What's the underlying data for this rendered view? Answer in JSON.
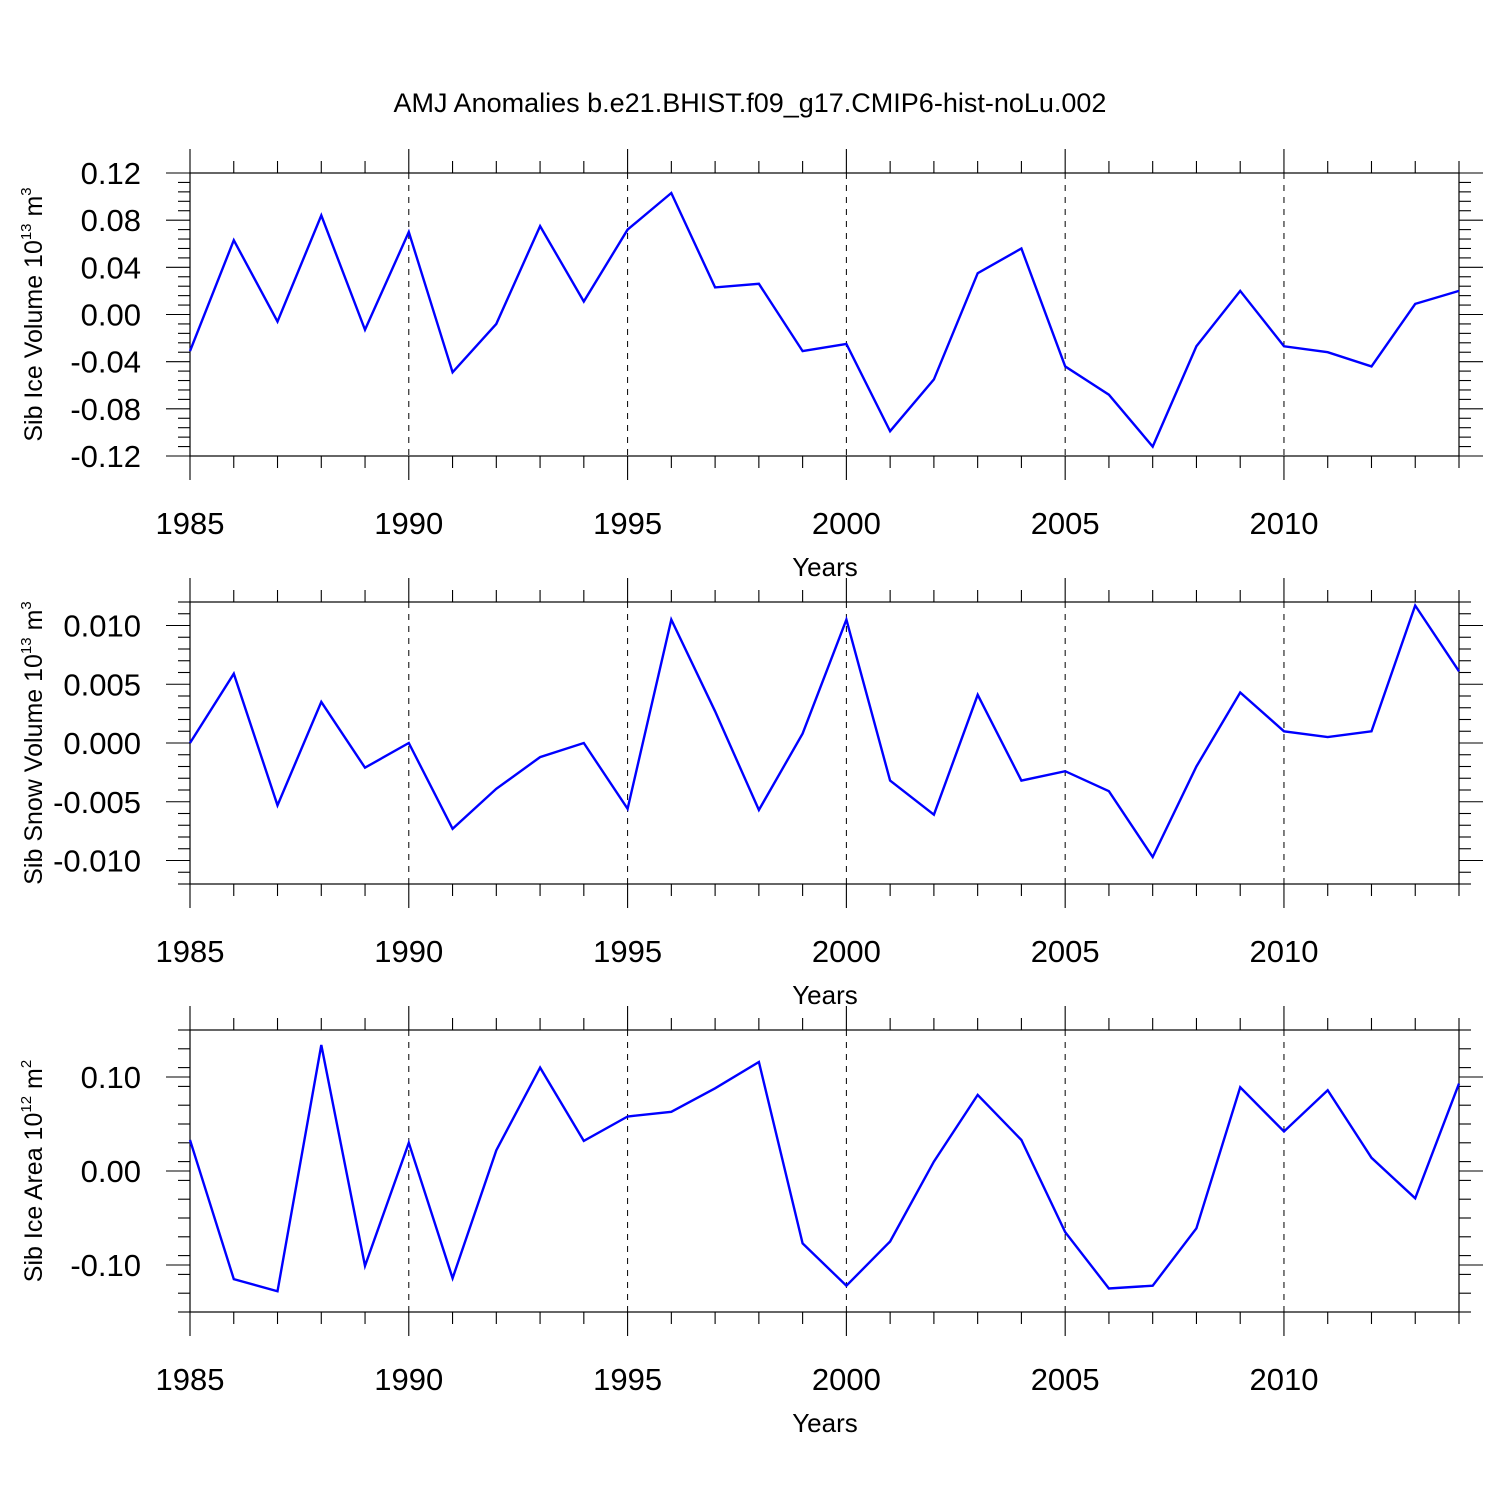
{
  "title": "AMJ Anomalies b.e21.BHIST.f09_g17.CMIP6-hist-noLu.002",
  "colors": {
    "series": "#0000ff",
    "axes": "#000000",
    "background": "#ffffff"
  },
  "chart_data": [
    {
      "type": "line",
      "ylabel_main": "Sib Ice Volume 10",
      "ylabel_exp": "13",
      "ylabel_unit": " m",
      "ylabel_unit_exp": "3",
      "xlabel": "Years",
      "xlim": [
        1985,
        2014
      ],
      "ylim": [
        -0.12,
        0.12
      ],
      "xticks": [
        1985,
        1990,
        1995,
        2000,
        2005,
        2010
      ],
      "xtick_labels": [
        "1985",
        "1990",
        "1995",
        "2000",
        "2005",
        "2010"
      ],
      "yticks": [
        -0.12,
        -0.08,
        -0.04,
        0.0,
        0.04,
        0.08,
        0.12
      ],
      "ytick_labels": [
        "-0.12",
        "-0.08",
        "-0.04",
        "0.00",
        "0.04",
        "0.08",
        "0.12"
      ],
      "x": [
        1985,
        1986,
        1987,
        1988,
        1989,
        1990,
        1991,
        1992,
        1993,
        1994,
        1995,
        1996,
        1997,
        1998,
        1999,
        2000,
        2001,
        2002,
        2003,
        2004,
        2005,
        2006,
        2007,
        2008,
        2009,
        2010,
        2011,
        2012,
        2013,
        2014
      ],
      "values": [
        -0.031,
        0.063,
        -0.006,
        0.084,
        -0.013,
        0.07,
        -0.049,
        -0.008,
        0.075,
        0.011,
        0.072,
        0.103,
        0.023,
        0.026,
        -0.031,
        -0.025,
        -0.099,
        -0.055,
        0.035,
        0.056,
        -0.044,
        -0.068,
        -0.112,
        -0.027,
        0.02,
        -0.027,
        -0.032,
        -0.044,
        0.009,
        0.02
      ]
    },
    {
      "type": "line",
      "ylabel_main": "Sib Snow Volume 10",
      "ylabel_exp": "13",
      "ylabel_unit": " m",
      "ylabel_unit_exp": "3",
      "xlabel": "Years",
      "xlim": [
        1985,
        2014
      ],
      "ylim": [
        -0.012,
        0.012
      ],
      "xticks": [
        1985,
        1990,
        1995,
        2000,
        2005,
        2010
      ],
      "xtick_labels": [
        "1985",
        "1990",
        "1995",
        "2000",
        "2005",
        "2010"
      ],
      "yticks": [
        -0.01,
        -0.005,
        0.0,
        0.005,
        0.01
      ],
      "ytick_labels": [
        "-0.010",
        "-0.005",
        "0.000",
        "0.005",
        "0.010"
      ],
      "x": [
        1985,
        1986,
        1987,
        1988,
        1989,
        1990,
        1991,
        1992,
        1993,
        1994,
        1995,
        1996,
        1997,
        1998,
        1999,
        2000,
        2001,
        2002,
        2003,
        2004,
        2005,
        2006,
        2007,
        2008,
        2009,
        2010,
        2011,
        2012,
        2013,
        2014
      ],
      "values": [
        0.0,
        0.0059,
        -0.0053,
        0.0035,
        -0.0021,
        0.0,
        -0.0073,
        -0.0039,
        -0.0012,
        0.0,
        -0.0056,
        0.0105,
        0.0027,
        -0.0057,
        0.0008,
        0.0105,
        -0.0032,
        -0.0061,
        0.0041,
        -0.0032,
        -0.0024,
        -0.0041,
        -0.0097,
        -0.002,
        0.0043,
        0.001,
        0.0005,
        0.001,
        0.0117,
        0.0061
      ]
    },
    {
      "type": "line",
      "ylabel_main": "Sib Ice Area 10",
      "ylabel_exp": "12",
      "ylabel_unit": " m",
      "ylabel_unit_exp": "2",
      "xlabel": "Years",
      "xlim": [
        1985,
        2014
      ],
      "ylim": [
        -0.15,
        0.15
      ],
      "xticks": [
        1985,
        1990,
        1995,
        2000,
        2005,
        2010
      ],
      "xtick_labels": [
        "1985",
        "1990",
        "1995",
        "2000",
        "2005",
        "2010"
      ],
      "yticks": [
        -0.1,
        0.0,
        0.1
      ],
      "ytick_labels": [
        "-0.10",
        "0.00",
        "0.10"
      ],
      "x": [
        1985,
        1986,
        1987,
        1988,
        1989,
        1990,
        1991,
        1992,
        1993,
        1994,
        1995,
        1996,
        1997,
        1998,
        1999,
        2000,
        2001,
        2002,
        2003,
        2004,
        2005,
        2006,
        2007,
        2008,
        2009,
        2010,
        2011,
        2012,
        2013,
        2014
      ],
      "values": [
        0.033,
        -0.115,
        -0.128,
        0.134,
        -0.101,
        0.03,
        -0.114,
        0.022,
        0.11,
        0.032,
        0.058,
        0.063,
        0.088,
        0.116,
        -0.077,
        -0.122,
        -0.075,
        0.01,
        0.081,
        0.033,
        -0.065,
        -0.125,
        -0.122,
        -0.061,
        0.089,
        0.042,
        0.086,
        0.014,
        -0.029,
        0.093
      ]
    }
  ]
}
